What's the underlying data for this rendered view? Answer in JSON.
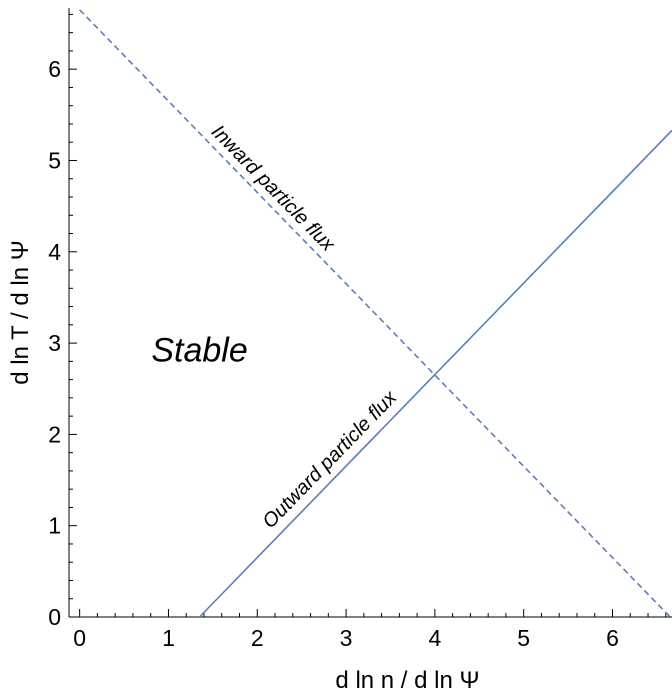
{
  "chart_data": {
    "type": "line",
    "xlabel": "d ln n / d ln Ψ",
    "ylabel": "d ln T / d ln Ψ",
    "xlim": [
      -0.12,
      6.67
    ],
    "ylim": [
      0,
      6.67
    ],
    "xticks": [
      0,
      1,
      2,
      3,
      4,
      5,
      6
    ],
    "yticks": [
      0,
      1,
      2,
      3,
      4,
      5,
      6
    ],
    "grid": false,
    "series": [
      {
        "label": "Inward particle flux",
        "style": "dashed",
        "color": "#5b7fb0",
        "x": [
          0.0,
          6.65
        ],
        "y": [
          6.65,
          0.0
        ]
      },
      {
        "label": "Outward particle flux",
        "style": "solid",
        "color": "#5b7fb0",
        "x": [
          1.35,
          6.67
        ],
        "y": [
          0.0,
          5.33
        ]
      }
    ],
    "annotations": [
      {
        "text": "Stable",
        "x": 1.35,
        "y": 2.93
      }
    ]
  }
}
